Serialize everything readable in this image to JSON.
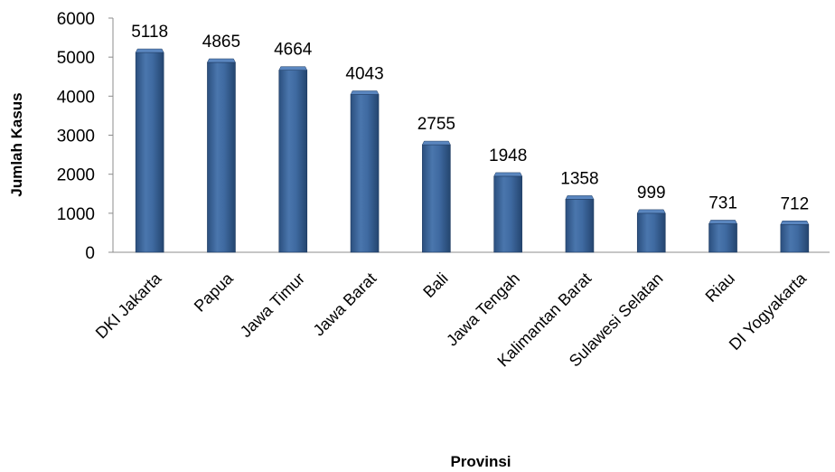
{
  "chart_data": {
    "type": "bar",
    "title": "",
    "xlabel": "Provinsi",
    "ylabel": "Jumlah Kasus",
    "categories": [
      "DKI Jakarta",
      "Papua",
      "Jawa Timur",
      "Jawa Barat",
      "Bali",
      "Jawa Tengah",
      "Kalimantan Barat",
      "Sulawesi Selatan",
      "Riau",
      "DI Yogyakarta"
    ],
    "values": [
      5118,
      4865,
      4664,
      4043,
      2755,
      1948,
      1358,
      999,
      731,
      712
    ],
    "ylim": [
      0,
      6000
    ],
    "yticks": [
      0,
      1000,
      2000,
      3000,
      4000,
      5000,
      6000
    ],
    "grid": false,
    "legend": "none",
    "bar_color": "#3C6496"
  }
}
